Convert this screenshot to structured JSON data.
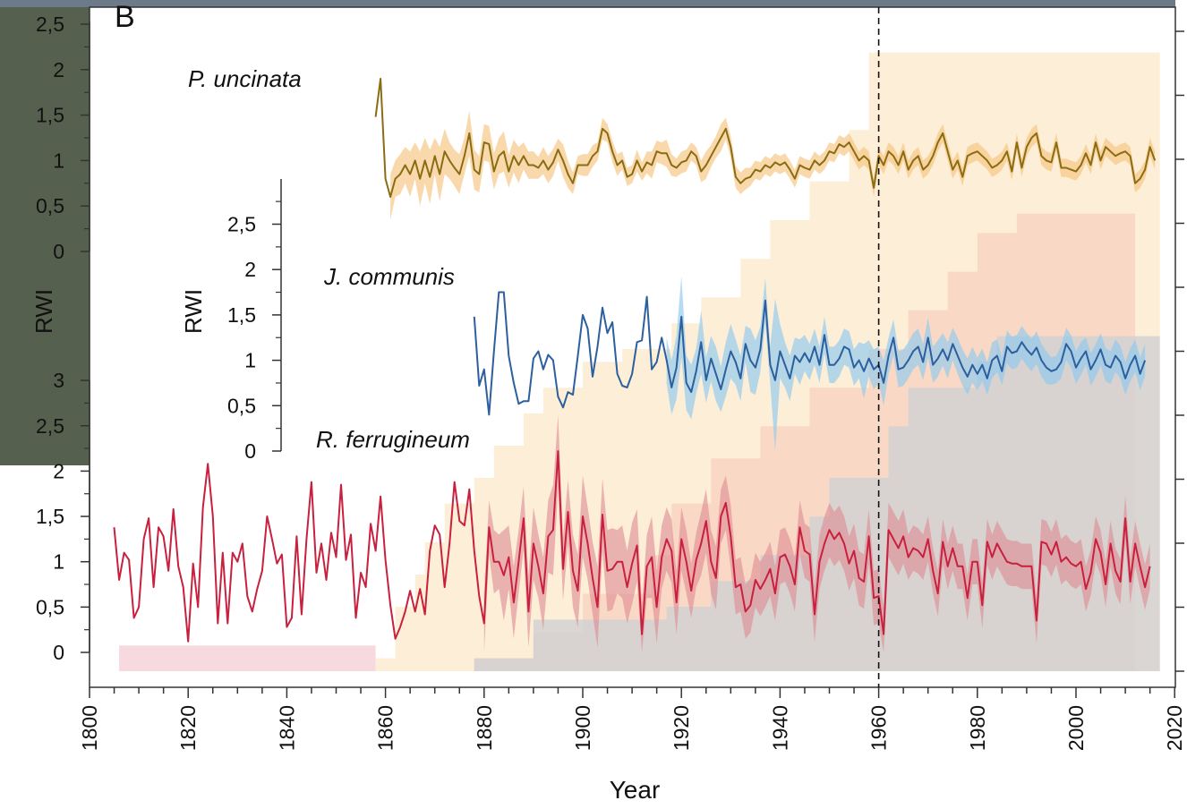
{
  "chart_data": {
    "type": "line",
    "panel_label": "B",
    "xlabel": "Year",
    "ylabel": "RWI",
    "xlim": [
      1800,
      2020
    ],
    "x_ticks": [
      1800,
      1820,
      1840,
      1860,
      1880,
      1900,
      1920,
      1940,
      1960,
      1980,
      2000,
      2020
    ],
    "reference_line_year": 1960,
    "colors": {
      "uncinata_line": "#8a6c12",
      "uncinata_band": "#f6c47f",
      "communis_line": "#2c5f9e",
      "communis_band": "#8ec9ee",
      "ferrugineum_line": "#c8203e",
      "ferrugineum_band": "#dd8a93",
      "depth_uncinata": "#fdebd0",
      "depth_communis": "#f5c8b6",
      "depth_ferrugineum": "#cfcfd2",
      "depth_early": "#f6d6dc"
    },
    "panels": [
      {
        "species": "P. uncinata",
        "y_ticks": [
          "0",
          "0,5",
          "1",
          "1,5",
          "2",
          "2,5"
        ],
        "ylim": [
          0,
          2.5
        ],
        "series_start": 1858,
        "band_start": 1861,
        "values": [
          1.48,
          1.9,
          0.8,
          0.6,
          0.8,
          0.85,
          0.95,
          0.85,
          1.0,
          0.8,
          1.0,
          0.82,
          1.05,
          0.85,
          1.1,
          1.0,
          0.92,
          0.85,
          1.05,
          1.3,
          0.9,
          0.85,
          1.2,
          1.18,
          0.88,
          1.05,
          1.1,
          0.88,
          1.05,
          0.95,
          1.05,
          0.95,
          0.95,
          0.92,
          1.0,
          0.9,
          0.98,
          1.12,
          1.0,
          0.85,
          0.75,
          0.95,
          0.95,
          0.95,
          1.05,
          1.1,
          1.35,
          1.3,
          1.1,
          0.95,
          1.0,
          0.82,
          0.85,
          1.0,
          0.88,
          0.98,
          0.95,
          1.1,
          1.08,
          1.08,
          0.95,
          0.92,
          0.98,
          1.0,
          1.1,
          1.05,
          0.88,
          0.95,
          1.05,
          1.15,
          1.25,
          1.35,
          1.15,
          0.82,
          0.75,
          0.8,
          0.82,
          0.9,
          0.88,
          0.95,
          0.92,
          0.98,
          0.95,
          0.98,
          0.9,
          0.8,
          0.95,
          0.92,
          0.9,
          1.0,
          0.95,
          1.0,
          1.1,
          1.08,
          1.18,
          1.15,
          1.2,
          1.1,
          1.0,
          1.05,
          1.0,
          0.7,
          1.05,
          0.95,
          1.1,
          1.05,
          0.95,
          1.1,
          0.9,
          1.0,
          1.05,
          0.9,
          0.95,
          1.05,
          1.2,
          1.3,
          1.1,
          0.9,
          1.0,
          0.82,
          1.05,
          1.08,
          1.1,
          1.05,
          1.0,
          0.92,
          0.95,
          1.0,
          1.1,
          0.88,
          1.2,
          0.92,
          1.15,
          1.25,
          1.3,
          1.05,
          1.0,
          0.98,
          1.2,
          0.92,
          0.92,
          0.9,
          0.88,
          0.95,
          1.08,
          0.95,
          1.2,
          1.0,
          1.15,
          1.1,
          1.05,
          1.08,
          1.1,
          1.05,
          0.75,
          0.8,
          0.9,
          1.15,
          1.0
        ],
        "band_width": [
          0.25,
          0.2,
          0.22,
          0.2,
          0.25,
          0.2,
          0.3,
          0.25,
          0.3,
          0.2,
          0.3,
          0.25,
          0.2,
          0.2,
          0.22,
          0.2,
          0.25,
          0.22,
          0.2,
          0.2,
          0.2,
          0.2,
          0.2,
          0.22,
          0.18,
          0.18,
          0.2,
          0.15,
          0.15,
          0.15,
          0.12,
          0.15,
          0.15,
          0.15,
          0.12,
          0.18,
          0.15,
          0.12,
          0.1,
          0.12,
          0.12,
          0.12,
          0.1,
          0.12,
          0.1,
          0.12,
          0.12,
          0.1,
          0.1,
          0.1,
          0.12,
          0.1,
          0.12,
          0.15,
          0.12,
          0.12,
          0.15,
          0.12,
          0.1,
          0.12,
          0.12,
          0.1,
          0.1,
          0.12,
          0.15,
          0.12,
          0.12,
          0.15,
          0.12,
          0.12,
          0.12,
          0.12,
          0.12,
          0.1,
          0.1,
          0.1,
          0.1,
          0.1,
          0.1,
          0.1,
          0.1,
          0.1,
          0.1,
          0.1,
          0.1,
          0.1,
          0.1,
          0.1,
          0.1,
          0.1,
          0.1,
          0.1,
          0.1,
          0.1,
          0.1,
          0.1,
          0.1,
          0.1,
          0.1,
          0.1,
          0.1,
          0.1,
          0.1,
          0.1,
          0.1,
          0.1,
          0.1,
          0.1,
          0.1,
          0.1,
          0.1,
          0.1,
          0.1,
          0.1,
          0.1,
          0.1,
          0.1,
          0.1,
          0.1,
          0.1,
          0.1,
          0.1,
          0.1,
          0.1,
          0.1,
          0.1,
          0.1,
          0.1,
          0.1,
          0.1,
          0.1,
          0.1,
          0.1,
          0.1,
          0.1,
          0.1,
          0.1,
          0.1,
          0.1,
          0.1,
          0.1,
          0.1,
          0.1,
          0.1,
          0.1,
          0.1,
          0.1,
          0.1,
          0.1,
          0.1,
          0.1,
          0.1,
          0.1,
          0.1,
          0.1,
          0.1,
          0.1,
          0.1,
          0.1,
          0.1,
          0.1,
          0.1,
          0.1,
          0.1
        ]
      },
      {
        "species": "J. communis",
        "y_ticks": [
          "0",
          "0,5",
          "1",
          "1,5",
          "2",
          "2,5"
        ],
        "ylim": [
          0,
          2.9
        ],
        "series_start": 1878,
        "band_start": 1917,
        "values": [
          1.48,
          0.72,
          0.9,
          0.4,
          1.1,
          1.75,
          1.75,
          1.05,
          0.75,
          0.52,
          0.55,
          0.55,
          1.02,
          1.1,
          0.9,
          1.06,
          1.0,
          0.6,
          0.48,
          0.65,
          0.62,
          1.05,
          1.5,
          1.35,
          0.82,
          1.15,
          1.58,
          1.3,
          1.42,
          0.85,
          0.72,
          0.7,
          0.85,
          1.2,
          1.22,
          1.7,
          0.9,
          0.98,
          1.25,
          1.0,
          0.7,
          0.92,
          1.48,
          0.75,
          0.65,
          0.88,
          1.2,
          0.78,
          1.02,
          0.85,
          0.68,
          0.9,
          1.1,
          0.98,
          0.8,
          1.18,
          1.0,
          0.92,
          1.12,
          1.66,
          0.95,
          0.78,
          1.1,
          0.95,
          0.8,
          1.05,
          0.98,
          1.08,
          0.98,
          1.15,
          0.95,
          1.28,
          0.95,
          0.95,
          1.02,
          1.15,
          1.12,
          0.92,
          1.0,
          0.88,
          1.02,
          0.9,
          0.95,
          0.75,
          1.05,
          1.25,
          0.9,
          0.92,
          1.0,
          1.1,
          1.15,
          0.98,
          1.25,
          0.95,
          1.02,
          1.12,
          1.0,
          1.18,
          1.05,
          0.92,
          0.82,
          0.95,
          0.85,
          0.95,
          0.8,
          1.0,
          1.05,
          0.88,
          1.15,
          1.08,
          1.1,
          1.2,
          1.12,
          1.06,
          1.14,
          1.0,
          0.92,
          0.88,
          0.9,
          0.98,
          1.18,
          1.1,
          0.92,
          1.02,
          1.1,
          0.9,
          1.0,
          1.12,
          0.95,
          0.92,
          1.05,
          0.98,
          0.8,
          0.95,
          1.05,
          0.85,
          1.0
        ],
        "band_width": [
          0.25,
          0.3,
          0.35,
          0.45,
          0.3,
          0.3,
          0.25,
          0.35,
          0.25,
          0.25,
          0.3,
          0.25,
          0.3,
          0.3,
          0.25,
          0.25,
          0.2,
          0.35,
          0.3,
          0.25,
          0.25,
          0.2,
          0.9,
          0.3,
          0.25,
          0.25,
          0.2,
          0.25,
          0.2,
          0.2,
          0.2,
          0.2,
          0.2,
          0.2,
          0.2,
          0.2,
          0.2,
          0.2,
          0.2,
          0.2,
          0.3,
          0.2,
          0.22,
          0.2,
          0.25,
          0.2,
          0.2,
          0.2,
          0.2,
          0.2,
          0.2,
          0.2,
          0.2,
          0.22,
          0.2,
          0.2,
          0.18,
          0.2,
          0.18,
          0.2,
          0.2,
          0.2,
          0.2,
          0.18,
          0.18,
          0.18,
          0.2,
          0.18,
          0.15,
          0.18,
          0.18,
          0.18,
          0.18,
          0.18,
          0.18,
          0.18,
          0.18,
          0.18,
          0.15,
          0.15,
          0.18,
          0.18,
          0.18,
          0.18,
          0.18,
          0.15,
          0.18,
          0.18,
          0.18,
          0.18,
          0.18,
          0.18,
          0.18,
          0.18,
          0.18,
          0.18,
          0.18,
          0.18,
          0.18,
          0.18,
          0.2
        ]
      },
      {
        "species": "R. ferrugineum",
        "y_ticks": [
          "0",
          "0,5",
          "1",
          "1,5",
          "2",
          "2,5",
          "3"
        ],
        "ylim": [
          0,
          3
        ],
        "series_start": 1805,
        "band_start": 1880,
        "values": [
          1.38,
          0.8,
          1.1,
          1.02,
          0.38,
          0.5,
          1.25,
          1.48,
          0.72,
          1.38,
          1.28,
          0.9,
          1.58,
          0.95,
          0.72,
          0.12,
          0.98,
          0.5,
          1.6,
          2.08,
          1.5,
          0.32,
          1.1,
          0.32,
          1.1,
          1.0,
          1.2,
          0.62,
          0.45,
          0.7,
          0.9,
          1.5,
          1.25,
          0.98,
          1.08,
          0.28,
          0.38,
          1.28,
          0.42,
          1.25,
          1.88,
          0.88,
          1.2,
          0.8,
          1.32,
          1.05,
          1.85,
          1.02,
          1.3,
          0.38,
          0.88,
          0.72,
          1.42,
          1.12,
          1.72,
          1.02,
          0.52,
          0.15,
          0.28,
          0.45,
          0.68,
          0.45,
          0.7,
          0.42,
          1.12,
          1.4,
          1.3,
          0.72,
          1.2,
          1.88,
          1.45,
          1.4,
          1.8,
          1.12,
          0.62,
          0.32,
          1.38,
          1.0,
          1.0,
          0.85,
          1.05,
          0.55,
          1.0,
          1.48,
          0.45,
          1.2,
          0.95,
          0.65,
          1.28,
          1.35,
          2.22,
          0.92,
          1.55,
          0.9,
          0.68,
          1.5,
          1.2,
          0.82,
          0.5,
          1.52,
          0.9,
          0.92,
          1.0,
          1.0,
          0.72,
          0.98,
          1.18,
          0.2,
          0.95,
          1.05,
          0.5,
          1.05,
          1.25,
          1.12,
          0.55,
          1.25,
          1.0,
          0.68,
          1.02,
          1.2,
          1.45,
          1.0,
          0.82,
          1.5,
          1.65,
          1.28,
          0.72,
          0.75,
          0.45,
          0.52,
          0.8,
          0.7,
          0.8,
          0.92,
          0.65,
          1.05,
          1.08,
          0.95,
          0.75,
          1.38,
          1.12,
          1.08,
          0.42,
          1.0,
          1.2,
          1.35,
          1.25,
          1.32,
          1.2,
          0.98,
          1.12,
          0.82,
          0.78,
          1.28,
          0.6,
          0.62,
          0.2,
          1.35,
          1.25,
          1.15,
          1.28,
          1.05,
          1.15,
          1.12,
          1.05,
          1.25,
          0.9,
          0.65,
          1.22,
          0.95,
          1.15,
          0.95,
          0.95,
          0.6,
          1.0,
          1.0,
          0.52,
          1.22,
          1.05,
          1.2,
          1.1,
          1.0,
          0.98,
          0.98,
          0.95,
          0.95,
          0.95,
          0.35,
          1.22,
          1.2,
          1.08,
          1.22,
          1.0,
          1.05,
          0.98,
          0.95,
          1.0,
          0.7,
          0.88,
          1.25,
          1.1,
          0.75,
          1.2,
          0.9,
          0.78,
          1.48,
          0.78,
          1.2,
          0.95,
          0.72,
          0.95
        ],
        "band_width": [
          0.35,
          0.3,
          0.35,
          0.3,
          0.5,
          0.35,
          0.4,
          0.35,
          0.35,
          0.4,
          0.4,
          0.35,
          0.4,
          0.4,
          0.5,
          0.4,
          0.35,
          0.35,
          0.4,
          0.4,
          0.45,
          0.4,
          0.4,
          0.45,
          0.4,
          0.45,
          0.45,
          0.35,
          0.4,
          0.4,
          0.45,
          0.4,
          0.35,
          0.35,
          0.45,
          0.4,
          0.35,
          0.35,
          0.35,
          0.35,
          0.35,
          0.35,
          0.3,
          0.3,
          0.35,
          0.35,
          0.35,
          0.35,
          0.3,
          0.3,
          0.35,
          0.3,
          0.3,
          0.3,
          0.3,
          0.3,
          0.3,
          0.3,
          0.3,
          0.3,
          0.3,
          0.3,
          0.3,
          0.3,
          0.3,
          0.3,
          0.3,
          0.3,
          0.3,
          0.3,
          0.3,
          0.3,
          0.3,
          0.3,
          0.3,
          0.3,
          0.3,
          0.3,
          0.3,
          0.3,
          0.3,
          0.3,
          0.3,
          0.3,
          0.3,
          0.3,
          0.25,
          0.25,
          0.25,
          0.25,
          0.25,
          0.25,
          0.25,
          0.25,
          0.25,
          0.25,
          0.25,
          0.25,
          0.25,
          0.25,
          0.25,
          0.25,
          0.25,
          0.25,
          0.25,
          0.25,
          0.25,
          0.25,
          0.25,
          0.25,
          0.25,
          0.25,
          0.25,
          0.25,
          0.25,
          0.25,
          0.25,
          0.25,
          0.25,
          0.25,
          0.25,
          0.25,
          0.25,
          0.25,
          0.25,
          0.25,
          0.25,
          0.25,
          0.25,
          0.25,
          0.25,
          0.25,
          0.25,
          0.25,
          0.25,
          0.25,
          0.25
        ]
      }
    ],
    "sample_depth": [
      {
        "name": "P. uncinata",
        "years": [
          1858,
          1862,
          1866,
          1868,
          1872,
          1878,
          1882,
          1888,
          1892,
          1900,
          1908,
          1918,
          1924,
          1932,
          1938,
          1946,
          1954,
          1958,
          2014,
          2017
        ],
        "levels": [
          0.02,
          0.1,
          0.15,
          0.2,
          0.26,
          0.3,
          0.35,
          0.4,
          0.44,
          0.48,
          0.5,
          0.54,
          0.58,
          0.64,
          0.7,
          0.76,
          0.84,
          0.96,
          0.96,
          0.8
        ]
      },
      {
        "name": "J. communis",
        "years": [
          1878,
          1890,
          1900,
          1914,
          1918,
          1926,
          1936,
          1946,
          1958,
          1966,
          1974,
          1980,
          1988,
          2008,
          2012
        ],
        "levels": [
          0.02,
          0.06,
          0.12,
          0.18,
          0.26,
          0.33,
          0.38,
          0.44,
          0.5,
          0.56,
          0.62,
          0.68,
          0.71,
          0.71,
          0.6
        ]
      },
      {
        "name": "R. ferrugineum",
        "years": [
          1878,
          1890,
          1917,
          1926,
          1936,
          1946,
          1950,
          1962,
          1966,
          1980,
          1984,
          2017
        ],
        "levels": [
          0.02,
          0.08,
          0.1,
          0.14,
          0.18,
          0.24,
          0.3,
          0.38,
          0.44,
          0.48,
          0.52,
          0.52
        ]
      },
      {
        "name": "early",
        "years": [
          1804,
          1806,
          1858
        ],
        "levels": [
          0.0,
          0.04,
          0.04
        ]
      }
    ]
  }
}
